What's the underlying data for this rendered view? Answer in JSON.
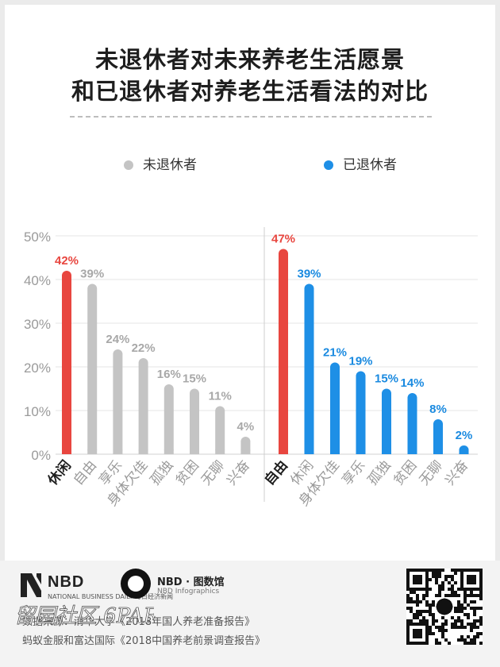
{
  "title": {
    "line1": "未退休者对未来养老生活愿景",
    "line2": "和已退休者对养老生活看法的对比"
  },
  "legend": [
    {
      "label": "未退休者",
      "color": "#c4c4c4"
    },
    {
      "label": "已退休者",
      "color": "#1e8fe6"
    }
  ],
  "colors": {
    "highlight": "#e8463f",
    "non_retired": "#c4c4c4",
    "retired": "#1e8fe6",
    "non_retired_label": "#a8a8a8",
    "retired_label": "#1a8ae0"
  },
  "chart_data": [
    {
      "type": "bar",
      "series": [
        {
          "name": "未退休者",
          "values": [
            42,
            39,
            24,
            22,
            16,
            15,
            11,
            4
          ]
        }
      ],
      "categories": [
        "休闲",
        "自由",
        "享乐",
        "身体欠佳",
        "孤独",
        "贫困",
        "无聊",
        "兴奋"
      ],
      "value_labels": [
        "42%",
        "39%",
        "24%",
        "22%",
        "16%",
        "15%",
        "11%",
        "4%"
      ],
      "highlight_index": 0,
      "ylim": [
        0,
        50
      ],
      "yticks": [
        "0%",
        "10%",
        "20%",
        "30%",
        "40%",
        "50%"
      ],
      "grid": true
    },
    {
      "type": "bar",
      "series": [
        {
          "name": "已退休者",
          "values": [
            47,
            39,
            21,
            19,
            15,
            14,
            8,
            2
          ]
        }
      ],
      "categories": [
        "自由",
        "休闲",
        "身体欠佳",
        "享乐",
        "孤独",
        "贫困",
        "无聊",
        "兴奋"
      ],
      "value_labels": [
        "47%",
        "39%",
        "21%",
        "19%",
        "15%",
        "14%",
        "8%",
        "2%"
      ],
      "highlight_index": 0,
      "ylim": [
        0,
        50
      ],
      "grid": true
    }
  ],
  "footer": {
    "logo_nbd": "NBD",
    "logo_nbd_sub": "NATIONAL BUSINESS DAILY 每日经济新闻",
    "logo_info": "NBD · 图数馆",
    "logo_info_sub": "NBD Infographics",
    "source_line1": "数据来源：清华大学《2018年国人养老准备报告》",
    "source_line2": "蚂蚁金服和富达国际《2018中国养老前景调查报告》",
    "watermark": "留园社区 6PARK.COM"
  }
}
